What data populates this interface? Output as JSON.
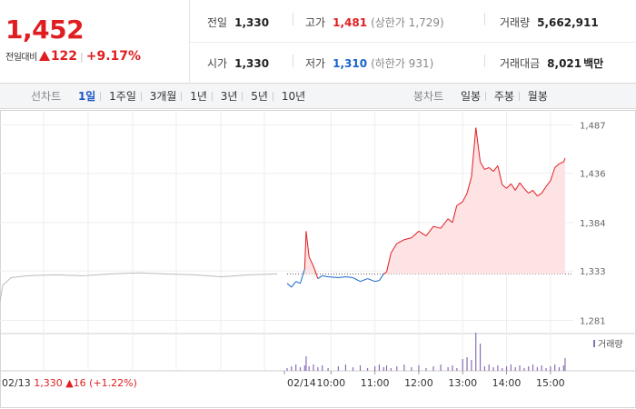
{
  "summary": {
    "price": "1,452",
    "change_label": "전일대비",
    "change_value": "122",
    "change_pct": "+9.17%"
  },
  "stats": {
    "prev_close": {
      "label": "전일",
      "value": "1,330"
    },
    "open": {
      "label": "시가",
      "value": "1,330"
    },
    "high": {
      "label": "고가",
      "value": "1,481",
      "sub": "(상한가 1,729)"
    },
    "low": {
      "label": "저가",
      "value": "1,310",
      "sub": "(하한가 931)"
    },
    "volume": {
      "label": "거래량",
      "value": "5,662,911"
    },
    "amount": {
      "label": "거래대금",
      "value": "8,021",
      "unit": "백만"
    }
  },
  "line_tabs": {
    "title": "선차트",
    "items": [
      "1일",
      "1주일",
      "3개월",
      "1년",
      "3년",
      "5년",
      "10년"
    ],
    "active": "1일"
  },
  "candle_tabs": {
    "title": "봉차트",
    "items": [
      "일봉",
      "주봉",
      "월봉"
    ]
  },
  "colors": {
    "up": "#e01e22",
    "down": "#1865c8",
    "prev": "#bbbbbb",
    "volume": "#8a6fb5",
    "area": "#fde3e4"
  },
  "chart_data": {
    "type": "line",
    "ylim": [
      1270,
      1495
    ],
    "y_ticks": [
      1487,
      1436,
      1384,
      1333,
      1281
    ],
    "reference": 1330,
    "prev_day": {
      "date": "02/13",
      "close": "1,330",
      "change": "16",
      "change_pct": "(+1.22%)",
      "shape": [
        [
          0,
          1301
        ],
        [
          0.01,
          1318
        ],
        [
          0.04,
          1326
        ],
        [
          0.1,
          1328
        ],
        [
          0.2,
          1329
        ],
        [
          0.3,
          1328
        ],
        [
          0.4,
          1330
        ],
        [
          0.5,
          1331
        ],
        [
          0.6,
          1330
        ],
        [
          0.7,
          1329
        ],
        [
          0.8,
          1327
        ],
        [
          0.9,
          1329
        ],
        [
          1,
          1330
        ]
      ]
    },
    "x_ticks": [
      "10:00",
      "11:00",
      "12:00",
      "13:00",
      "14:00",
      "15:00"
    ],
    "today_label": "02/14",
    "series": [
      {
        "t": "09:00",
        "v": 1320
      },
      {
        "t": "09:06",
        "v": 1316
      },
      {
        "t": "09:12",
        "v": 1322
      },
      {
        "t": "09:18",
        "v": 1320
      },
      {
        "t": "09:24",
        "v": 1335
      },
      {
        "t": "09:26",
        "v": 1375
      },
      {
        "t": "09:30",
        "v": 1348
      },
      {
        "t": "09:36",
        "v": 1338
      },
      {
        "t": "09:42",
        "v": 1325
      },
      {
        "t": "09:48",
        "v": 1328
      },
      {
        "t": "09:56",
        "v": 1327
      },
      {
        "t": "10:10",
        "v": 1326
      },
      {
        "t": "10:20",
        "v": 1327
      },
      {
        "t": "10:30",
        "v": 1326
      },
      {
        "t": "10:40",
        "v": 1322
      },
      {
        "t": "10:50",
        "v": 1325
      },
      {
        "t": "11:00",
        "v": 1322
      },
      {
        "t": "11:06",
        "v": 1323
      },
      {
        "t": "11:12",
        "v": 1330
      },
      {
        "t": "11:16",
        "v": 1332
      },
      {
        "t": "11:22",
        "v": 1352
      },
      {
        "t": "11:30",
        "v": 1362
      },
      {
        "t": "11:40",
        "v": 1366
      },
      {
        "t": "11:50",
        "v": 1368
      },
      {
        "t": "12:00",
        "v": 1375
      },
      {
        "t": "12:10",
        "v": 1370
      },
      {
        "t": "12:20",
        "v": 1380
      },
      {
        "t": "12:30",
        "v": 1378
      },
      {
        "t": "12:40",
        "v": 1388
      },
      {
        "t": "12:46",
        "v": 1384
      },
      {
        "t": "12:52",
        "v": 1402
      },
      {
        "t": "13:00",
        "v": 1406
      },
      {
        "t": "13:06",
        "v": 1415
      },
      {
        "t": "13:12",
        "v": 1432
      },
      {
        "t": "13:18",
        "v": 1484
      },
      {
        "t": "13:24",
        "v": 1448
      },
      {
        "t": "13:30",
        "v": 1440
      },
      {
        "t": "13:36",
        "v": 1442
      },
      {
        "t": "13:42",
        "v": 1438
      },
      {
        "t": "13:48",
        "v": 1444
      },
      {
        "t": "13:54",
        "v": 1424
      },
      {
        "t": "14:00",
        "v": 1420
      },
      {
        "t": "14:06",
        "v": 1425
      },
      {
        "t": "14:12",
        "v": 1418
      },
      {
        "t": "14:18",
        "v": 1426
      },
      {
        "t": "14:24",
        "v": 1420
      },
      {
        "t": "14:30",
        "v": 1415
      },
      {
        "t": "14:36",
        "v": 1418
      },
      {
        "t": "14:42",
        "v": 1412
      },
      {
        "t": "14:48",
        "v": 1415
      },
      {
        "t": "14:54",
        "v": 1422
      },
      {
        "t": "15:00",
        "v": 1428
      },
      {
        "t": "15:06",
        "v": 1442
      },
      {
        "t": "15:12",
        "v": 1446
      },
      {
        "t": "15:18",
        "v": 1448
      },
      {
        "t": "15:20",
        "v": 1452
      }
    ],
    "volume_label": "거래량"
  }
}
